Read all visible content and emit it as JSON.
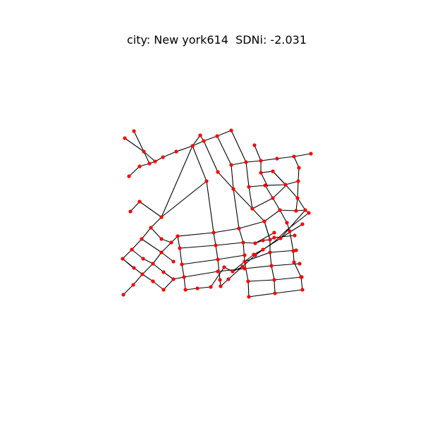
{
  "figure": {
    "title": "city: New york614  SDNi: -2.031"
  },
  "colors": {
    "edge": "#000000",
    "node": "#ff0000",
    "background": "#ffffff"
  }
}
